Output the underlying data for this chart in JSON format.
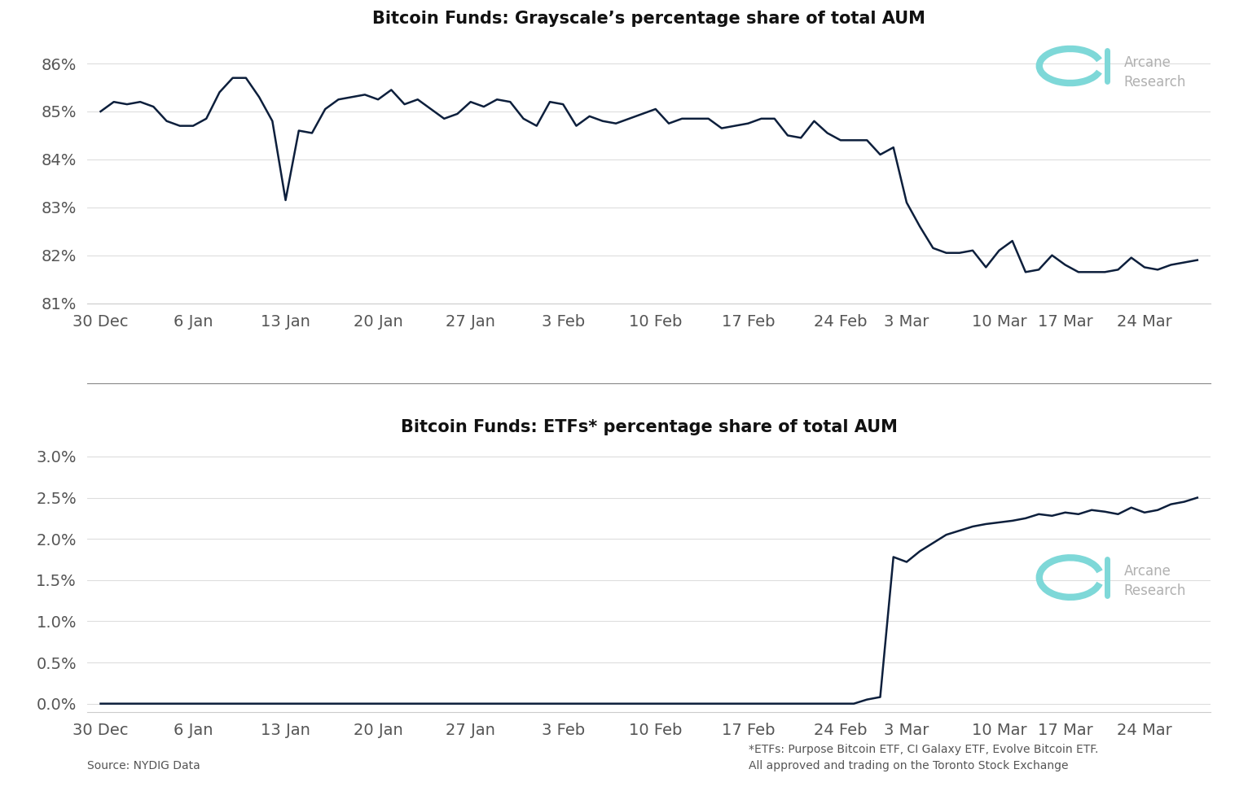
{
  "title1": "Bitcoin Funds: Grayscale’s percentage share of total AUM",
  "title2": "Bitcoin Funds: ETFs* percentage share of total AUM",
  "line_color": "#0d1f3c",
  "background_color": "#ffffff",
  "source_text": "Source: NYDIG Data",
  "footnote_text": "*ETFs: Purpose Bitcoin ETF, CI Galaxy ETF, Evolve Bitcoin ETF.\nAll approved and trading on the Toronto Stock Exchange",
  "xtick_labels": [
    "30 Dec",
    "6 Jan",
    "13 Jan",
    "20 Jan",
    "27 Jan",
    "3 Feb",
    "10 Feb",
    "17 Feb",
    "24 Feb",
    "3 Mar",
    "10 Mar",
    "17 Mar",
    "24 Mar"
  ],
  "grayscale_y": [
    85.0,
    85.2,
    85.15,
    85.2,
    85.1,
    84.8,
    84.7,
    84.7,
    84.85,
    85.4,
    85.7,
    85.7,
    85.3,
    84.8,
    83.15,
    84.6,
    84.55,
    85.05,
    85.25,
    85.3,
    85.35,
    85.25,
    85.45,
    85.15,
    85.25,
    85.05,
    84.85,
    84.95,
    85.2,
    85.1,
    85.25,
    85.2,
    84.85,
    84.7,
    85.2,
    85.15,
    84.7,
    84.9,
    84.8,
    84.75,
    84.85,
    84.95,
    85.05,
    84.75,
    84.85,
    84.85,
    84.85,
    84.65,
    84.7,
    84.75,
    84.85,
    84.85,
    84.5,
    84.45,
    84.8,
    84.55,
    84.4,
    84.4,
    84.4,
    84.1,
    84.25,
    83.1,
    82.6,
    82.15,
    82.05,
    82.05,
    82.1,
    81.75,
    82.1,
    82.3,
    81.65,
    81.7,
    82.0,
    81.8,
    81.65,
    81.65,
    81.65,
    81.7,
    81.95,
    81.75,
    81.7,
    81.8,
    81.85,
    81.9
  ],
  "etf_y": [
    0.0,
    0.0,
    0.0,
    0.0,
    0.0,
    0.0,
    0.0,
    0.0,
    0.0,
    0.0,
    0.0,
    0.0,
    0.0,
    0.0,
    0.0,
    0.0,
    0.0,
    0.0,
    0.0,
    0.0,
    0.0,
    0.0,
    0.0,
    0.0,
    0.0,
    0.0,
    0.0,
    0.0,
    0.0,
    0.0,
    0.0,
    0.0,
    0.0,
    0.0,
    0.0,
    0.0,
    0.0,
    0.0,
    0.0,
    0.0,
    0.0,
    0.0,
    0.0,
    0.0,
    0.0,
    0.0,
    0.0,
    0.0,
    0.0,
    0.0,
    0.0,
    0.0,
    0.0,
    0.0,
    0.0,
    0.0,
    0.0,
    0.0,
    0.05,
    0.08,
    1.78,
    1.72,
    1.85,
    1.95,
    2.05,
    2.1,
    2.15,
    2.18,
    2.2,
    2.22,
    2.25,
    2.3,
    2.28,
    2.32,
    2.3,
    2.35,
    2.33,
    2.3,
    2.38,
    2.32,
    2.35,
    2.42,
    2.45,
    2.5
  ],
  "grayscale_ylim": [
    81.0,
    86.5
  ],
  "grayscale_yticks": [
    81,
    82,
    83,
    84,
    85,
    86
  ],
  "etf_ylim": [
    -0.1,
    3.1
  ],
  "etf_yticks": [
    0.0,
    0.5,
    1.0,
    1.5,
    2.0,
    2.5,
    3.0
  ],
  "xtick_positions": [
    0,
    7,
    14,
    21,
    28,
    35,
    42,
    49,
    56,
    61,
    68,
    73,
    79
  ],
  "n_points": 84,
  "title_fontsize": 15,
  "tick_fontsize": 14,
  "source_fontsize": 10,
  "arcane_logo_color": "#7ed8d8",
  "arcane_text_color": "#b0b0b0"
}
